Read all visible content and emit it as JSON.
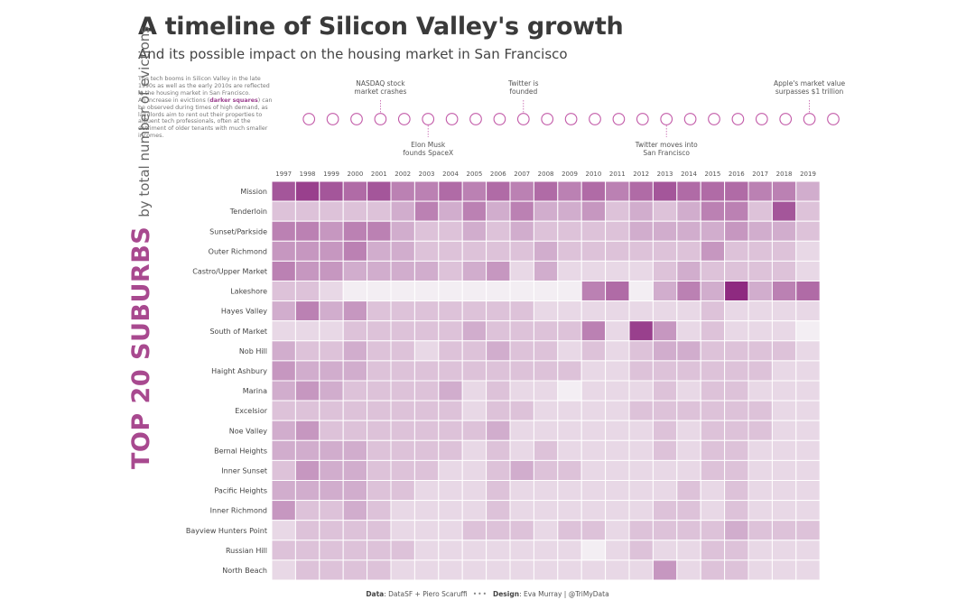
{
  "title": "A timeline of Silicon Valley's growth",
  "subtitle": "And its possible impact on the housing market in San Francisco",
  "intro": {
    "p1": "The tech booms in Silicon Valley in the late 1990s as well as the early 2010s are reflected in the housing market in San Francisco.",
    "p2_before": "An increase in evictions (",
    "p2_highlight": "darker squares",
    "p2_after": ") can be observed during times of high demand, as landlords aim to rent out their properties to affluent tech professionals, often at the detriment of older tenants with much smaller incomes."
  },
  "side_title": {
    "big": "TOP 20 SUBURBS",
    "small": "by total number of evictions"
  },
  "footer": {
    "data_label": "Data",
    "data_value": ": DataSF + Piero Scaruffi",
    "dots": "•••",
    "design_label": "Design",
    "design_value": ": Eva Murray | @TriMyData"
  },
  "colors": {
    "low": "#f3eef3",
    "high": "#8e2a80",
    "timeline": "#c25aa8",
    "grid": "#ffffff"
  },
  "chart_data": {
    "type": "heatmap",
    "title": "A timeline of Silicon Valley's growth",
    "x": [
      "1997",
      "1998",
      "1999",
      "2000",
      "2001",
      "2002",
      "2003",
      "2004",
      "2005",
      "2006",
      "2007",
      "2008",
      "2009",
      "2010",
      "2011",
      "2012",
      "2013",
      "2014",
      "2015",
      "2016",
      "2017",
      "2018",
      "2019"
    ],
    "y": [
      "Mission",
      "Tenderloin",
      "Sunset/Parkside",
      "Outer Richmond",
      "Castro/Upper Market",
      "Lakeshore",
      "Hayes Valley",
      "South of Market",
      "Nob Hill",
      "Haight Ashbury",
      "Marina",
      "Excelsior",
      "Noe Valley",
      "Bernal Heights",
      "Inner Sunset",
      "Pacific Heights",
      "Inner Richmond",
      "Bayview Hunters Point",
      "Russian Hill",
      "North Beach"
    ],
    "values": [
      [
        8,
        9,
        8,
        7,
        8,
        6,
        6,
        7,
        6,
        7,
        6,
        7,
        6,
        7,
        6,
        7,
        8,
        7,
        7,
        7,
        6,
        6,
        4
      ],
      [
        3,
        3,
        3,
        3,
        3,
        4,
        6,
        4,
        6,
        4,
        6,
        4,
        4,
        5,
        3,
        4,
        3,
        4,
        6,
        6,
        3,
        8,
        3
      ],
      [
        6,
        6,
        5,
        6,
        6,
        4,
        3,
        3,
        4,
        3,
        4,
        3,
        3,
        3,
        3,
        4,
        4,
        4,
        4,
        5,
        4,
        4,
        3
      ],
      [
        5,
        5,
        5,
        6,
        4,
        4,
        3,
        3,
        3,
        3,
        3,
        4,
        3,
        3,
        3,
        3,
        3,
        3,
        5,
        3,
        3,
        3,
        2
      ],
      [
        6,
        5,
        5,
        4,
        4,
        4,
        4,
        3,
        4,
        5,
        2,
        4,
        2,
        2,
        2,
        2,
        3,
        4,
        3,
        3,
        3,
        3,
        2
      ],
      [
        3,
        3,
        2,
        1,
        1,
        1,
        1,
        1,
        1,
        1,
        1,
        1,
        1,
        6,
        7,
        1,
        4,
        6,
        4,
        10,
        4,
        6,
        7
      ],
      [
        4,
        6,
        4,
        5,
        3,
        3,
        3,
        3,
        3,
        3,
        3,
        2,
        2,
        2,
        2,
        2,
        2,
        2,
        3,
        2,
        2,
        2,
        2
      ],
      [
        2,
        2,
        2,
        3,
        3,
        3,
        3,
        3,
        4,
        3,
        3,
        3,
        3,
        6,
        2,
        9,
        5,
        2,
        3,
        2,
        2,
        2,
        1
      ],
      [
        4,
        3,
        3,
        4,
        3,
        3,
        2,
        3,
        3,
        4,
        3,
        3,
        2,
        3,
        2,
        3,
        4,
        4,
        3,
        3,
        3,
        3,
        2
      ],
      [
        5,
        4,
        4,
        4,
        3,
        3,
        3,
        3,
        3,
        3,
        3,
        3,
        3,
        2,
        2,
        3,
        3,
        3,
        3,
        3,
        3,
        2,
        2
      ],
      [
        4,
        5,
        4,
        3,
        3,
        3,
        3,
        4,
        2,
        3,
        2,
        2,
        1,
        2,
        2,
        2,
        3,
        2,
        3,
        3,
        2,
        2,
        2
      ],
      [
        3,
        3,
        3,
        3,
        3,
        3,
        3,
        3,
        2,
        3,
        3,
        2,
        2,
        2,
        2,
        3,
        3,
        3,
        3,
        3,
        3,
        2,
        2
      ],
      [
        4,
        5,
        3,
        3,
        3,
        3,
        3,
        3,
        3,
        4,
        2,
        2,
        2,
        2,
        2,
        2,
        3,
        2,
        3,
        3,
        3,
        2,
        2
      ],
      [
        4,
        4,
        4,
        4,
        3,
        3,
        3,
        3,
        2,
        3,
        2,
        3,
        2,
        2,
        2,
        2,
        3,
        2,
        3,
        3,
        2,
        2,
        2
      ],
      [
        3,
        5,
        4,
        4,
        3,
        3,
        3,
        2,
        2,
        3,
        4,
        3,
        3,
        2,
        2,
        2,
        2,
        2,
        3,
        3,
        2,
        2,
        2
      ],
      [
        4,
        4,
        4,
        4,
        3,
        3,
        2,
        2,
        2,
        3,
        2,
        2,
        2,
        2,
        2,
        2,
        2,
        3,
        2,
        3,
        2,
        2,
        2
      ],
      [
        5,
        3,
        3,
        4,
        3,
        2,
        2,
        2,
        2,
        3,
        2,
        2,
        2,
        2,
        2,
        2,
        3,
        3,
        2,
        3,
        2,
        2,
        2
      ],
      [
        2,
        3,
        3,
        3,
        3,
        2,
        2,
        2,
        3,
        3,
        3,
        2,
        3,
        3,
        2,
        3,
        3,
        3,
        3,
        4,
        3,
        3,
        3
      ],
      [
        3,
        3,
        3,
        3,
        3,
        3,
        2,
        2,
        2,
        2,
        2,
        2,
        2,
        1,
        2,
        3,
        2,
        2,
        3,
        3,
        2,
        2,
        2
      ],
      [
        2,
        3,
        3,
        3,
        3,
        2,
        2,
        2,
        2,
        2,
        2,
        2,
        2,
        2,
        2,
        2,
        5,
        2,
        3,
        3,
        2,
        2,
        2
      ]
    ]
  },
  "timeline": {
    "events": [
      {
        "year": "2000",
        "text": [
          "NASDAQ stock",
          "market crashes"
        ],
        "position": "above"
      },
      {
        "year": "2002",
        "text": [
          "Elon Musk",
          "founds SpaceX"
        ],
        "position": "below"
      },
      {
        "year": "2006",
        "text": [
          "Twitter is",
          "founded"
        ],
        "position": "above"
      },
      {
        "year": "2012",
        "text": [
          "Twitter moves into",
          "San Francisco"
        ],
        "position": "below"
      },
      {
        "year": "2018",
        "text": [
          "Apple's market value",
          "surpasses $1 trillion"
        ],
        "position": "above"
      }
    ]
  }
}
